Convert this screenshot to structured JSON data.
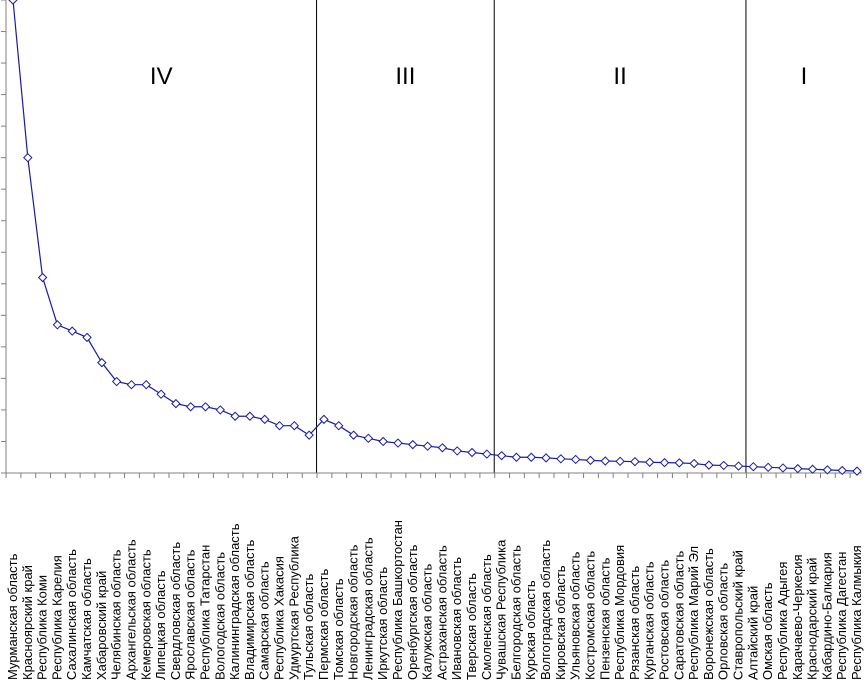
{
  "chart_data": {
    "type": "line",
    "title": "",
    "xlabel": "",
    "ylabel": "",
    "ylim": [
      0,
      15
    ],
    "y_tick_step": 1,
    "y_tick_labels_visible": false,
    "grid": false,
    "legend": "none",
    "line_color": "#1a1aa6",
    "marker": "diamond",
    "categories": [
      "Мурманская область",
      "Красноярский край",
      "Республика Коми",
      "Республика Карелия",
      "Сахалинская область",
      "Камчатская область",
      "Хабаровский край",
      "Челябинская область",
      "Архангельская область",
      "Кемеровская область",
      "Липецкая область",
      "Свердловская область",
      "Ярославская область",
      "Республика Татарстан",
      "Вологодская область",
      "Калининградская область",
      "Владимирская область",
      "Самарская область",
      "Республика Хакасия",
      "Удмуртская Республика",
      "Тульская область",
      "Пермская область",
      "Томская область",
      "Новгородская область",
      "Ленинградская область",
      "Иркутская область",
      "Республика Башкортостан",
      "Оренбургская область",
      "Калужская область",
      "Астраханская область",
      "Ивановская область",
      "Тверская область",
      "Смоленская область",
      "Чувашская Республика",
      "Белгородская область",
      "Курская область",
      "Волгоградская область",
      "Кировская область",
      "Ульяновская область",
      "Костромская область",
      "Пензенская область",
      "Республика Мордовия",
      "Рязанская область",
      "Курганская область",
      "Ростовская область",
      "Саратовская область",
      "Республика Марий Эл",
      "Воронежская область",
      "Орловская область",
      "Ставропольский край",
      "Алтайский край",
      "Омская область",
      "Республика Адыгея",
      "Карачаево-Черкесия",
      "Краснодарский край",
      "Кабардино-Балкария",
      "Республика Дагестан",
      "Республика Калмыкия"
    ],
    "series": [
      {
        "values": [
          15.0,
          10.0,
          6.2,
          4.7,
          4.5,
          4.3,
          3.5,
          2.9,
          2.8,
          2.8,
          2.5,
          2.2,
          2.1,
          2.1,
          2.0,
          1.8,
          1.8,
          1.7,
          1.5,
          1.5,
          1.2,
          1.7,
          1.5,
          1.2,
          1.1,
          1.0,
          0.95,
          0.9,
          0.85,
          0.8,
          0.7,
          0.65,
          0.6,
          0.55,
          0.5,
          0.5,
          0.48,
          0.45,
          0.43,
          0.4,
          0.38,
          0.37,
          0.36,
          0.34,
          0.33,
          0.32,
          0.3,
          0.25,
          0.24,
          0.22,
          0.2,
          0.18,
          0.16,
          0.14,
          0.12,
          0.1,
          0.08,
          0.06
        ]
      }
    ],
    "groups": [
      {
        "label": "IV",
        "from": 0,
        "to": 20
      },
      {
        "label": "III",
        "from": 21,
        "to": 32
      },
      {
        "label": "II",
        "from": 33,
        "to": 49
      },
      {
        "label": "I",
        "from": 50,
        "to": 57
      }
    ]
  }
}
